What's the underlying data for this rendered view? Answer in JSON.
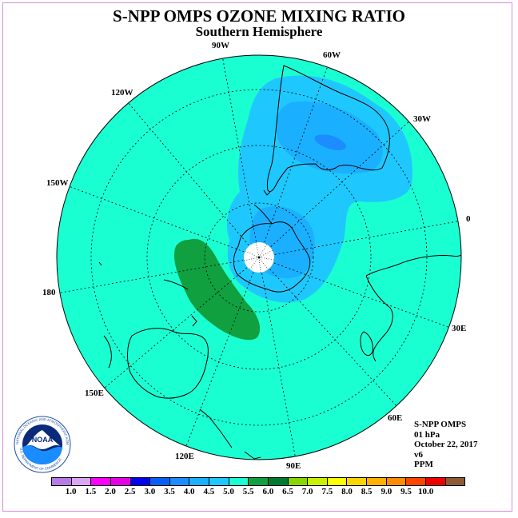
{
  "title": "S-NPP OMPS OZONE MIXING RATIO",
  "subtitle": "Southern Hemisphere",
  "longitude_labels": {
    "lon_90w": "90W",
    "lon_60w": "60W",
    "lon_120w": "120W",
    "lon_30w": "30W",
    "lon_150w": "150W",
    "lon_0": "0",
    "lon_180": "180",
    "lon_30e": "30E",
    "lon_150e": "150E",
    "lon_60e": "60E",
    "lon_120e": "120E",
    "lon_90e": "90E"
  },
  "info": {
    "instrument": "S-NPP OMPS",
    "level": "01 hPa",
    "date": "October 22, 2017",
    "version": "v6",
    "units": "PPM"
  },
  "logo": {
    "text": "NOAA",
    "ring_text": "NATIONAL OCEANIC AND ATMOSPHERIC ADMINISTRATION",
    "dept_text": "U.S. DEPARTMENT OF COMMERCE"
  },
  "colorbar": {
    "colors": [
      "#b87ae6",
      "#d9a6f0",
      "#ff00ff",
      "#e600e6",
      "#0000ee",
      "#0a5ef5",
      "#1c8cff",
      "#1ab0ff",
      "#1ec8ff",
      "#1affd2",
      "#10a040",
      "#007a2e",
      "#88d600",
      "#c8f000",
      "#ffff00",
      "#ffd500",
      "#ffb000",
      "#ff8c00",
      "#ff4400",
      "#ee0000",
      "#8c5a36"
    ],
    "ticks": [
      "1.0",
      "1.5",
      "2.0",
      "2.5",
      "3.0",
      "3.5",
      "4.0",
      "4.5",
      "5.0",
      "5.5",
      "6.0",
      "6.5",
      "7.0",
      "7.5",
      "8.0",
      "8.5",
      "9.0",
      "9.5",
      "10.0"
    ]
  },
  "map_colors": {
    "background_4_5_5_0": "#1affd2",
    "level_4_0_4_5": "#1ec8ff",
    "level_3_5_4_0": "#1ab0ff",
    "level_3_0_3_5": "#1c8cff",
    "level_5_5_6_0": "#10a040"
  }
}
